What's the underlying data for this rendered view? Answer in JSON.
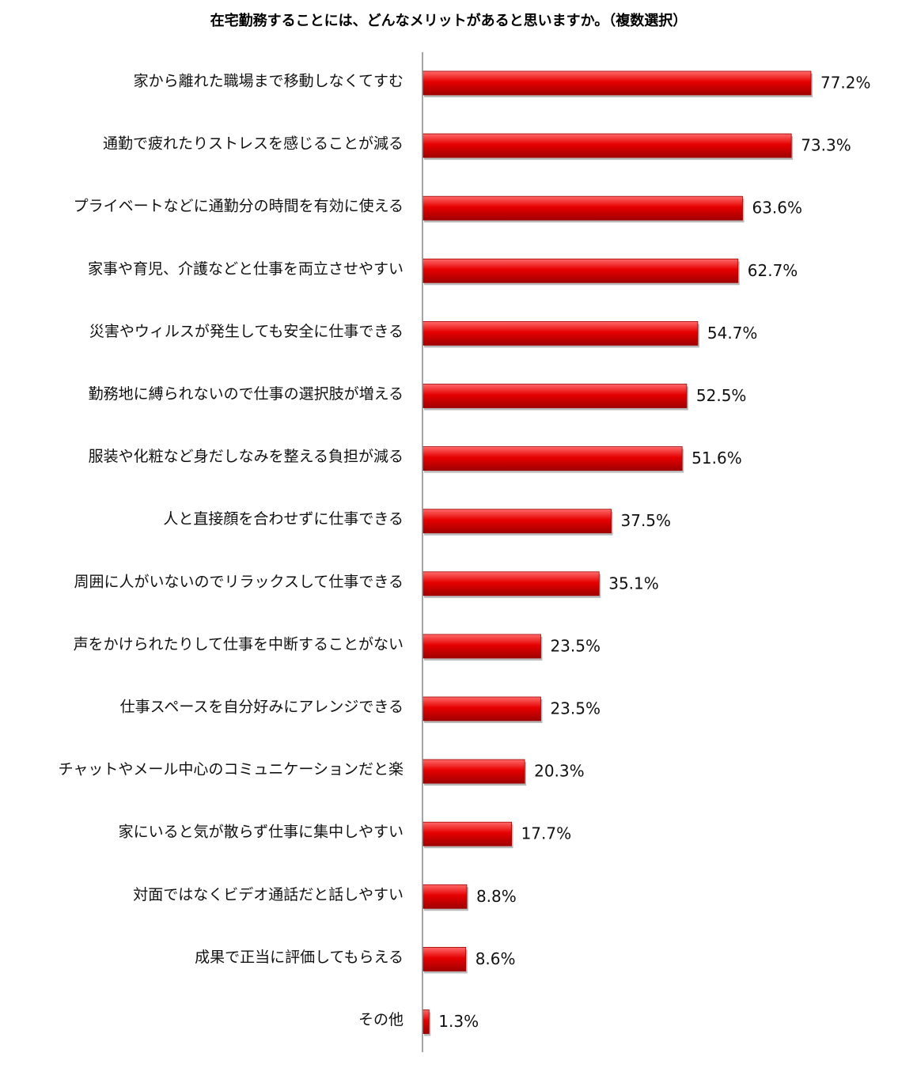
{
  "chart_data": {
    "type": "bar",
    "orientation": "horizontal",
    "title": "在宅勤務することには、どんなメリットがあると思いますか。（複数選択）",
    "xlabel": "",
    "ylabel": "",
    "xlim": [
      0,
      100
    ],
    "grid": false,
    "legend": "none",
    "categories": [
      "家から離れた職場まで移動しなくてすむ",
      "通勤で疲れたりストレスを感じることが減る",
      "プライベートなどに通勤分の時間を有効に使える",
      "家事や育児、介護などと仕事を両立させやすい",
      "災害やウィルスが発生しても安全に仕事できる",
      "勤務地に縛られないので仕事の選択肢が増える",
      "服装や化粧など身だしなみを整える負担が減る",
      "人と直接顔を合わせずに仕事できる",
      "周囲に人がいないのでリラックスして仕事できる",
      "声をかけられたりして仕事を中断することがない",
      "仕事スペースを自分好みにアレンジできる",
      "チャットやメール中心のコミュニケーションだと楽",
      "家にいると気が散らず仕事に集中しやすい",
      "対面ではなくビデオ通話だと話しやすい",
      "成果で正当に評価してもらえる",
      "その他"
    ],
    "values": [
      77.2,
      73.3,
      63.6,
      62.7,
      54.7,
      52.5,
      51.6,
      37.5,
      35.1,
      23.5,
      23.5,
      20.3,
      17.7,
      8.8,
      8.6,
      1.3
    ],
    "value_labels": [
      "77.2%",
      "73.3%",
      "63.6%",
      "62.7%",
      "54.7%",
      "52.5%",
      "51.6%",
      "37.5%",
      "35.1%",
      "23.5%",
      "23.5%",
      "20.3%",
      "17.7%",
      "8.8%",
      "8.6%",
      "1.3%"
    ],
    "colors": {
      "bar": "#e60000",
      "bar_highlight": "#ff6a6a",
      "bar_shadow": "#a00000",
      "axis": "#888888"
    }
  }
}
